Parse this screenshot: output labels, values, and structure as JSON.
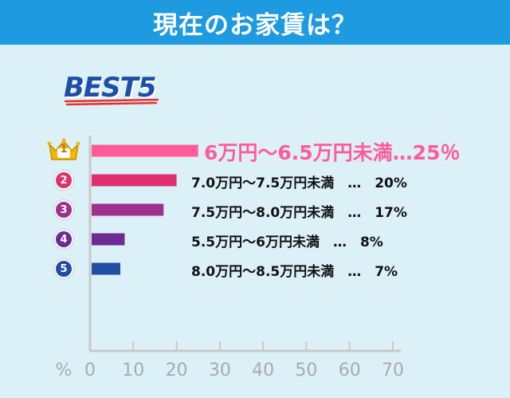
{
  "header": {
    "title": "現在のお家賃は？"
  },
  "badge_title": "BEST5",
  "colors": {
    "header": "#1e9be0",
    "panel": "#dcf0f8",
    "axis": "#c8c8c8",
    "rank1": "#ff5c97",
    "rank2": "#e0306e",
    "rank3": "#a0308f",
    "rank4": "#6e2a90",
    "rank5": "#1f4fa3"
  },
  "chart_data": {
    "type": "bar",
    "orientation": "horizontal",
    "xlabel": "%",
    "xlim": [
      0,
      70
    ],
    "xticks": [
      0,
      10,
      20,
      30,
      40,
      50,
      60,
      70
    ],
    "grid": false,
    "categories": [
      "6万円～6.5万円未満",
      "7.0万円～7.5万円未満",
      "7.5万円～8.0万円未満",
      "5.5万円～6万円未満",
      "8.0万円～8.5万円未満"
    ],
    "ranks": [
      "1",
      "2",
      "3",
      "4",
      "5"
    ],
    "values": [
      25,
      20,
      17,
      8,
      7
    ],
    "data_labels": [
      "6万円～6.5万円未満…25％",
      "7.0万円～7.5万円未満　…　20%",
      "7.5万円～8.0万円未満　…　17%",
      "5.5万円～6万円未満　…　8%",
      "8.0万円～8.5万円未満　…　7%"
    ]
  }
}
